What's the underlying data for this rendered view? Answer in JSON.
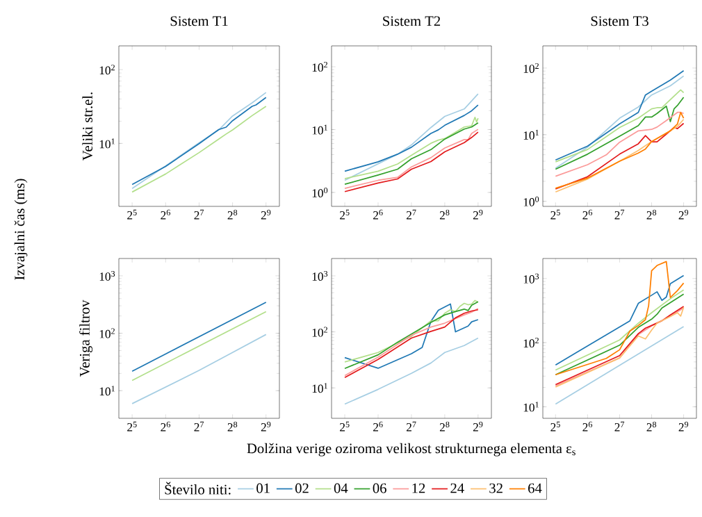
{
  "chart_data": [
    {
      "type": "line",
      "title": "Sistem T1",
      "ylabel": "Veliki str.el.",
      "annotations": [
        "Izvajalni čas (ms)"
      ],
      "log": "xy",
      "xlim": [
        24.3,
        675.6
      ],
      "ylim": [
        1.4,
        210
      ],
      "xticks": [
        {
          "value": 32,
          "label": "2$^{5}$"
        },
        {
          "value": 64,
          "label": "2$^{6}$"
        },
        {
          "value": 128,
          "label": "2$^{7}$"
        },
        {
          "value": 256,
          "label": "2$^{8}$"
        },
        {
          "value": 512,
          "label": "2$^{9}$"
        }
      ],
      "yticks": [
        {
          "value": 10,
          "label": "10$^{1}$"
        },
        {
          "value": 100,
          "label": "10$^{2}$"
        }
      ],
      "series": [
        {
          "color": "#a6cee3",
          "x": [
            32,
            64,
            128,
            192,
            256,
            384,
            512
          ],
          "values": [
            2.45,
            4.95,
            10.2,
            15.2,
            23.5,
            35.5,
            49
          ]
        },
        {
          "color": "#1f78b4",
          "x": [
            32,
            64,
            128,
            192,
            224,
            256,
            384,
            416,
            512
          ],
          "values": [
            2.77,
            4.88,
            9.9,
            15.4,
            16.6,
            20.3,
            31.8,
            33.2,
            42
          ]
        },
        {
          "color": "#b2df8a",
          "x": [
            32,
            64,
            128,
            192,
            224,
            256,
            384,
            512
          ],
          "values": [
            2.19,
            3.85,
            7.5,
            11.4,
            13.4,
            15.2,
            23.8,
            31.8
          ]
        }
      ]
    },
    {
      "type": "line",
      "title": "Sistem T2",
      "log": "xy",
      "xlim": [
        24.3,
        675.6
      ],
      "ylim": [
        0.6,
        215
      ],
      "xticks": [
        {
          "value": 32,
          "label": "2$^{5}$"
        },
        {
          "value": 64,
          "label": "2$^{6}$"
        },
        {
          "value": 128,
          "label": "2$^{7}$"
        },
        {
          "value": 256,
          "label": "2$^{8}$"
        },
        {
          "value": 512,
          "label": "2$^{9}$"
        }
      ],
      "yticks": [
        {
          "value": 1,
          "label": "10$^{0}$"
        },
        {
          "value": 10,
          "label": "10$^{1}$"
        },
        {
          "value": 100,
          "label": "10$^{2}$"
        }
      ],
      "series": [
        {
          "color": "#a6cee3",
          "x": [
            32,
            96,
            128,
            192,
            256,
            384,
            512
          ],
          "values": [
            1.56,
            4.06,
            5.7,
            10.8,
            16.2,
            21.3,
            37
          ]
        },
        {
          "color": "#1f78b4",
          "x": [
            32,
            64,
            96,
            128,
            192,
            224,
            256,
            384,
            448,
            512
          ],
          "values": [
            2.18,
            3.07,
            4.06,
            5.24,
            8.7,
            9.9,
            11.7,
            16.8,
            19.9,
            24.6
          ]
        },
        {
          "color": "#b2df8a",
          "x": [
            32,
            64,
            96,
            128,
            192,
            224,
            256,
            384,
            448,
            480,
            496,
            512
          ],
          "values": [
            1.66,
            2.18,
            2.84,
            3.89,
            6.06,
            6.8,
            7.2,
            11,
            11.5,
            15.7,
            13.2,
            15.2
          ]
        },
        {
          "color": "#33a02c",
          "x": [
            32,
            64,
            96,
            128,
            192,
            256,
            384,
            448,
            512
          ],
          "values": [
            1.35,
            1.89,
            2.34,
            3.43,
            4.8,
            7.06,
            10.2,
            11,
            12.8
          ]
        },
        {
          "color": "#fb9a99",
          "x": [
            32,
            64,
            96,
            128,
            192,
            256,
            384,
            416,
            448,
            512
          ],
          "values": [
            1.16,
            1.56,
            1.74,
            2.55,
            3.58,
            5.1,
            6.94,
            6.94,
            8.7,
            10.1
          ]
        },
        {
          "color": "#e31a1c",
          "x": [
            32,
            64,
            96,
            128,
            192,
            256,
            384,
            448,
            512
          ],
          "values": [
            1.03,
            1.41,
            1.64,
            2.34,
            3.1,
            4.42,
            6.2,
            7.5,
            9.1
          ]
        }
      ]
    },
    {
      "type": "line",
      "title": "Sistem T3",
      "log": "xy",
      "xlim": [
        24.3,
        675.6
      ],
      "ylim": [
        0.84,
        215
      ],
      "xticks": [
        {
          "value": 32,
          "label": "2$^{5}$"
        },
        {
          "value": 64,
          "label": "2$^{6}$"
        },
        {
          "value": 128,
          "label": "2$^{7}$"
        },
        {
          "value": 256,
          "label": "2$^{8}$"
        },
        {
          "value": 512,
          "label": "2$^{9}$"
        }
      ],
      "yticks": [
        {
          "value": 1,
          "label": "10$^{0}$"
        },
        {
          "value": 10,
          "label": "10$^{1}$"
        },
        {
          "value": 100,
          "label": "10$^{2}$"
        }
      ],
      "series": [
        {
          "color": "#a6cee3",
          "x": [
            32,
            64,
            128,
            192,
            256,
            384,
            512
          ],
          "values": [
            3.15,
            6.5,
            17.7,
            26,
            39.4,
            54,
            76
          ]
        },
        {
          "color": "#1f78b4",
          "x": [
            32,
            64,
            128,
            192,
            224,
            256,
            384,
            512
          ],
          "values": [
            4.17,
            6.75,
            14.5,
            21.6,
            39.4,
            45,
            66,
            91
          ]
        },
        {
          "color": "#b2df8a",
          "x": [
            32,
            64,
            128,
            192,
            256,
            288,
            320,
            384,
            480,
            512
          ],
          "values": [
            3.91,
            6,
            12.8,
            17.7,
            24.4,
            25.4,
            25.4,
            33.6,
            47,
            42.7
          ]
        },
        {
          "color": "#33a02c",
          "x": [
            32,
            64,
            128,
            192,
            224,
            256,
            288,
            352,
            384,
            416,
            448,
            512
          ],
          "values": [
            3.03,
            5.1,
            9.5,
            13.7,
            18.4,
            18.4,
            20.8,
            26.8,
            15.7,
            24.4,
            27.5,
            36.4
          ]
        },
        {
          "color": "#fb9a99",
          "x": [
            32,
            64,
            96,
            128,
            192,
            256,
            288,
            352,
            448,
            480,
            512
          ],
          "values": [
            2.38,
            3.55,
            4.98,
            7.7,
            11.4,
            12,
            13,
            16.3,
            21.6,
            21.6,
            20.8
          ]
        },
        {
          "color": "#e31a1c",
          "x": [
            32,
            64,
            128,
            192,
            224,
            256,
            288,
            352,
            416,
            448,
            512
          ],
          "values": [
            1.53,
            2.34,
            5.1,
            7.3,
            9.7,
            7.8,
            7.8,
            10.2,
            12.8,
            12.3,
            14.8
          ]
        },
        {
          "color": "#fdbf6f",
          "x": [
            32,
            64,
            128,
            192,
            256,
            384,
            448,
            512
          ],
          "values": [
            1.38,
            2.16,
            4.0,
            5.8,
            7.9,
            11.4,
            13.3,
            17
          ]
        },
        {
          "color": "#ff7f00",
          "x": [
            32,
            64,
            128,
            192,
            224,
            256,
            384,
            448,
            480,
            512
          ],
          "values": [
            1.57,
            2.23,
            4.0,
            5.3,
            6.1,
            7.9,
            11.4,
            14.5,
            21.6,
            17.7
          ]
        }
      ]
    },
    {
      "type": "line",
      "ylabel": "Veriga filtrov",
      "log": "xy",
      "xlim": [
        24.3,
        675.6
      ],
      "ylim": [
        3.3,
        2000
      ],
      "xticks": [
        {
          "value": 32,
          "label": "2$^{5}$"
        },
        {
          "value": 64,
          "label": "2$^{6}$"
        },
        {
          "value": 128,
          "label": "2$^{7}$"
        },
        {
          "value": 256,
          "label": "2$^{8}$"
        },
        {
          "value": 512,
          "label": "2$^{9}$"
        }
      ],
      "yticks": [
        {
          "value": 10,
          "label": "10$^{1}$"
        },
        {
          "value": 100,
          "label": "10$^{2}$"
        },
        {
          "value": 1000,
          "label": "10$^{3}$"
        }
      ],
      "series": [
        {
          "color": "#a6cee3",
          "x": [
            32,
            128,
            512
          ],
          "values": [
            5.94,
            22.5,
            95
          ]
        },
        {
          "color": "#1f78b4",
          "x": [
            32,
            512
          ],
          "values": [
            21.8,
            346
          ]
        },
        {
          "color": "#b2df8a",
          "x": [
            32,
            512
          ],
          "values": [
            15.1,
            237
          ]
        }
      ]
    },
    {
      "type": "line",
      "xlabel": "Dolžina verige oziroma velikost strukturnega elementa ε$_{s}$",
      "log": "xy",
      "xlim": [
        24.3,
        675.6
      ],
      "ylim": [
        2.86,
        2040
      ],
      "xticks": [
        {
          "value": 32,
          "label": "2$^{5}$"
        },
        {
          "value": 64,
          "label": "2$^{6}$"
        },
        {
          "value": 128,
          "label": "2$^{7}$"
        },
        {
          "value": 256,
          "label": "2$^{8}$"
        },
        {
          "value": 512,
          "label": "2$^{9}$"
        }
      ],
      "yticks": [
        {
          "value": 10,
          "label": "10$^{1}$"
        },
        {
          "value": 100,
          "label": "10$^{2}$"
        },
        {
          "value": 1000,
          "label": "10$^{3}$"
        }
      ],
      "series": [
        {
          "color": "#a6cee3",
          "x": [
            32,
            64,
            128,
            192,
            256,
            384,
            512
          ],
          "values": [
            5.14,
            9.4,
            18.2,
            27.8,
            42.8,
            56.9,
            77.6
          ]
        },
        {
          "color": "#1f78b4",
          "x": [
            32,
            64,
            128,
            160,
            192,
            224,
            288,
            320,
            416,
            448,
            512
          ],
          "values": [
            34.7,
            22.4,
            40.7,
            52.7,
            154,
            243,
            314,
            100,
            127,
            151,
            165
          ]
        },
        {
          "color": "#b2df8a",
          "x": [
            32,
            64,
            128,
            192,
            224,
            256,
            288,
            320,
            352,
            384,
            416,
            448,
            480,
            512
          ],
          "values": [
            29,
            42.8,
            83,
            158,
            158,
            215,
            248,
            230,
            286,
            323,
            305,
            314,
            363,
            339
          ]
        },
        {
          "color": "#33a02c",
          "x": [
            32,
            64,
            96,
            128,
            192,
            256,
            320,
            384,
            416,
            448,
            512
          ],
          "values": [
            22.2,
            38.9,
            65.5,
            91.3,
            147,
            201,
            230,
            255,
            240,
            299,
            345
          ]
        },
        {
          "color": "#fb9a99",
          "x": [
            32,
            64,
            128,
            192,
            256,
            320,
            384,
            448,
            512
          ],
          "values": [
            16.6,
            35.3,
            87,
            122,
            143,
            173,
            201,
            225,
            260
          ]
        },
        {
          "color": "#e31a1c",
          "x": [
            32,
            64,
            128,
            192,
            256,
            320,
            384,
            448,
            512
          ],
          "values": [
            15.3,
            32.1,
            77.6,
            102,
            122,
            178,
            215,
            236,
            248
          ]
        }
      ]
    },
    {
      "type": "line",
      "log": "xy",
      "legend": "bottom",
      "legend_title": "Število niti:",
      "xlim": [
        24.3,
        675.6
      ],
      "ylim": [
        6.6,
        2050
      ],
      "xticks": [
        {
          "value": 32,
          "label": "2$^{5}$"
        },
        {
          "value": 64,
          "label": "2$^{6}$"
        },
        {
          "value": 128,
          "label": "2$^{7}$"
        },
        {
          "value": 256,
          "label": "2$^{8}$"
        },
        {
          "value": 512,
          "label": "2$^{9}$"
        }
      ],
      "yticks": [
        {
          "value": 10,
          "label": "10$^{1}$"
        },
        {
          "value": 100,
          "label": "10$^{2}$"
        },
        {
          "value": 1000,
          "label": "10$^{3}$"
        }
      ],
      "series": [
        {
          "name": "01",
          "color": "#a6cee3",
          "x": [
            32,
            512
          ],
          "values": [
            11.0,
            178
          ]
        },
        {
          "name": "02",
          "color": "#1f78b4",
          "x": [
            32,
            160,
            192,
            256,
            288,
            320,
            352,
            384,
            512
          ],
          "values": [
            44.9,
            219,
            409,
            548,
            621,
            456,
            513,
            832,
            1114
          ]
        },
        {
          "name": "04",
          "color": "#b2df8a",
          "x": [
            32,
            128,
            192,
            256,
            384,
            512
          ],
          "values": [
            37.3,
            110,
            201,
            293,
            484,
            664
          ]
        },
        {
          "name": "06",
          "color": "#33a02c",
          "x": [
            32,
            128,
            192,
            256,
            288,
            320,
            384,
            512
          ],
          "values": [
            31.6,
            91,
            173,
            232,
            277,
            347,
            420,
            571
          ]
        },
        {
          "name": "12",
          "color": "#fb9a99",
          "x": [
            32,
            128,
            192,
            256,
            384,
            512
          ],
          "values": [
            21.2,
            57.7,
            133,
            182,
            259,
            347
          ]
        },
        {
          "name": "24",
          "color": "#e31a1c",
          "x": [
            32,
            128,
            192,
            224,
            256,
            320,
            384,
            512
          ],
          "values": [
            22.1,
            62.7,
            138,
            168,
            185,
            219,
            270,
            367
          ]
        },
        {
          "name": "32",
          "color": "#fdbf6f",
          "x": [
            32,
            128,
            192,
            224,
            256,
            288,
            384,
            448,
            480,
            512
          ],
          "values": [
            20.3,
            57.7,
            127,
            114,
            157,
            201,
            255,
            293,
            259,
            355
          ]
        },
        {
          "name": "64",
          "color": "#ff7f00",
          "x": [
            32,
            96,
            128,
            160,
            192,
            224,
            240,
            256,
            288,
            352,
            384,
            448,
            512
          ],
          "values": [
            31.6,
            56.8,
            77.3,
            151,
            185,
            228,
            377,
            1318,
            1597,
            1838,
            505,
            649,
            847
          ]
        }
      ]
    }
  ]
}
